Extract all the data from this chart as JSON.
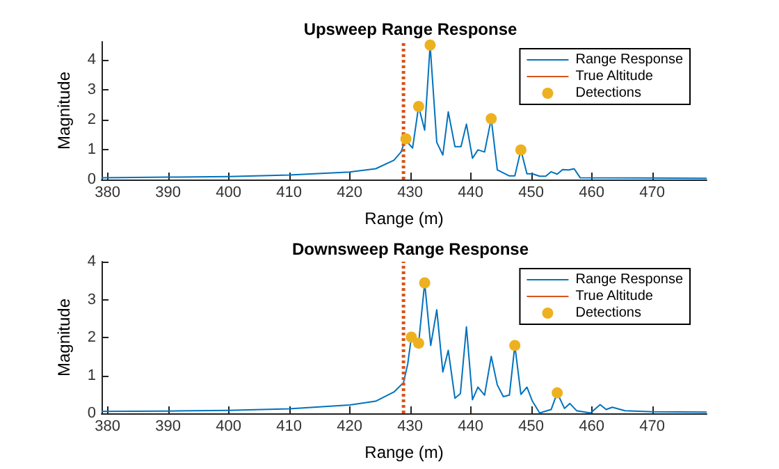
{
  "chart_data": [
    {
      "type": "line",
      "title": "Upsweep Range Response",
      "xlabel": "Range (m)",
      "ylabel": "Magnitude",
      "xlim": [
        379,
        479
      ],
      "xticks": [
        380,
        390,
        400,
        410,
        420,
        430,
        440,
        450,
        460,
        470
      ],
      "ylim": [
        0,
        4.6
      ],
      "yticks": [
        0,
        1,
        2,
        3,
        4
      ],
      "grid": false,
      "legend": "top right",
      "marker": "none",
      "series": [
        {
          "name": "Range Response",
          "color": "#0072bd",
          "type": "line",
          "x": [
            379,
            390,
            400,
            410,
            420,
            424.3,
            427.3,
            428.5,
            429.2,
            430.4,
            431.4,
            432.4,
            433.3,
            434.4,
            435.4,
            436.3,
            437.4,
            438.4,
            439.3,
            440.3,
            441.2,
            442.3,
            443.4,
            444.4,
            446.4,
            447.3,
            448.3,
            449.3,
            450.2,
            451.4,
            452.4,
            453.3,
            454.3,
            455.2,
            456.2,
            457.1,
            458.1,
            468,
            479
          ],
          "values": [
            0.06,
            0.08,
            0.1,
            0.15,
            0.25,
            0.36,
            0.64,
            0.92,
            1.33,
            1.05,
            2.44,
            1.65,
            4.49,
            1.24,
            0.82,
            2.26,
            1.1,
            1.1,
            1.85,
            0.71,
            0.99,
            0.92,
            2.03,
            0.32,
            0.12,
            0.12,
            0.99,
            0.19,
            0.19,
            0.11,
            0.11,
            0.26,
            0.18,
            0.33,
            0.32,
            0.36,
            0.06,
            0.05,
            0.04
          ]
        },
        {
          "name": "True Altitude",
          "color": "#d95319",
          "type": "line",
          "line_style": "dotted",
          "x": [
            428.9,
            428.9
          ],
          "values": [
            0,
            4.6
          ]
        },
        {
          "name": "Detections",
          "color": "#edb120",
          "type": "scatter",
          "marker": "circle",
          "x": [
            429.3,
            431.4,
            433.3,
            443.4,
            448.3
          ],
          "values": [
            1.36,
            2.44,
            4.49,
            2.03,
            0.99
          ]
        }
      ]
    },
    {
      "type": "line",
      "title": "Downsweep Range Response",
      "xlabel": "Range (m)",
      "ylabel": "Magnitude",
      "xlim": [
        379,
        479
      ],
      "xticks": [
        380,
        390,
        400,
        410,
        420,
        430,
        440,
        450,
        460,
        470
      ],
      "ylim": [
        0,
        4
      ],
      "yticks": [
        0,
        1,
        2,
        3,
        4
      ],
      "grid": false,
      "legend": "top right",
      "marker": "none",
      "series": [
        {
          "name": "Range Response",
          "color": "#0072bd",
          "type": "line",
          "x": [
            379,
            390,
            400,
            410,
            420,
            424.3,
            427.3,
            428.9,
            429.6,
            430.2,
            431.4,
            432.4,
            433.4,
            434.4,
            435.4,
            436.3,
            437.4,
            438.3,
            439.3,
            440.3,
            441.2,
            442.3,
            443.4,
            444.4,
            445.4,
            446.4,
            447.3,
            448.3,
            449.3,
            450.2,
            451.4,
            453.3,
            454.3,
            455.5,
            456.4,
            457.5,
            459.8,
            461.4,
            462.4,
            463.4,
            465.5,
            470,
            479
          ],
          "values": [
            0.05,
            0.06,
            0.08,
            0.12,
            0.22,
            0.32,
            0.56,
            0.81,
            1.3,
            2.01,
            1.85,
            3.44,
            1.79,
            2.73,
            1.09,
            1.66,
            0.4,
            0.52,
            2.28,
            0.36,
            0.69,
            0.48,
            1.5,
            0.75,
            0.44,
            0.48,
            1.79,
            0.5,
            0.69,
            0.32,
            0.01,
            0.1,
            0.54,
            0.13,
            0.26,
            0.07,
            0.01,
            0.23,
            0.1,
            0.16,
            0.07,
            0.04,
            0.03
          ]
        },
        {
          "name": "True Altitude",
          "color": "#d95319",
          "type": "line",
          "line_style": "dotted",
          "x": [
            428.9,
            428.9
          ],
          "values": [
            0,
            4
          ]
        },
        {
          "name": "Detections",
          "color": "#edb120",
          "type": "scatter",
          "marker": "circle",
          "x": [
            430.2,
            431.4,
            432.4,
            447.3,
            454.3
          ],
          "values": [
            2.01,
            1.85,
            3.44,
            1.79,
            0.54
          ]
        }
      ]
    }
  ]
}
